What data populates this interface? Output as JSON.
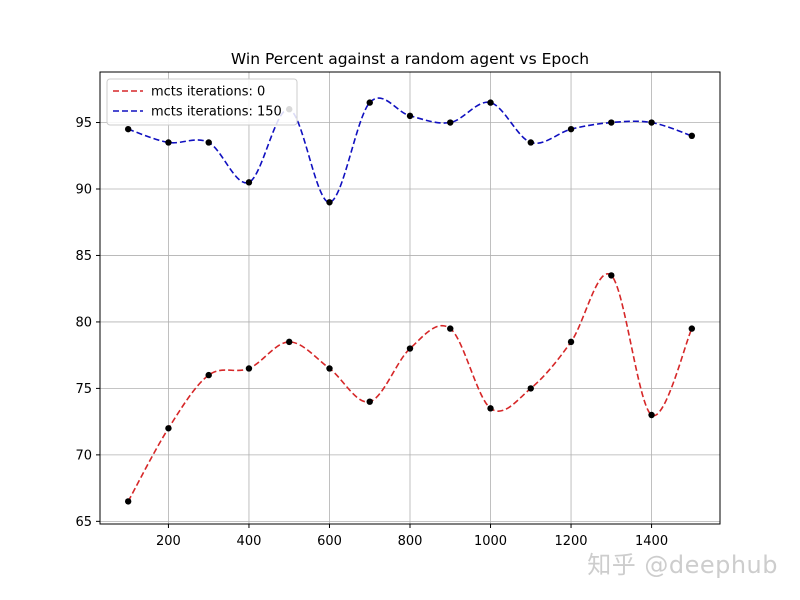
{
  "watermark": "知乎 @deephub",
  "chart_data": {
    "type": "line",
    "title": "Win Percent against a random agent vs Epoch",
    "xlabel": "",
    "ylabel": "",
    "xlim": [
      30,
      1570
    ],
    "ylim": [
      64.8,
      98.8
    ],
    "xticks": [
      200,
      400,
      600,
      800,
      1000,
      1200,
      1400
    ],
    "yticks": [
      65,
      70,
      75,
      80,
      85,
      90,
      95
    ],
    "grid": true,
    "legend_position": "top-left",
    "x": [
      100,
      200,
      300,
      400,
      500,
      600,
      700,
      800,
      900,
      1000,
      1100,
      1200,
      1300,
      1400,
      1500
    ],
    "series": [
      {
        "name": "mcts iterations: 0",
        "color": "#d62728",
        "line_style": "dashed",
        "values": [
          66.5,
          72.0,
          76.0,
          76.5,
          78.5,
          76.5,
          74.0,
          78.0,
          79.5,
          73.5,
          75.0,
          78.5,
          83.5,
          73.0,
          79.5
        ]
      },
      {
        "name": "mcts iterations: 150",
        "color": "#1010c0",
        "line_style": "dashed",
        "values": [
          94.5,
          93.5,
          93.5,
          90.5,
          96.0,
          89.0,
          96.5,
          95.5,
          95.0,
          96.5,
          93.5,
          94.5,
          95.0,
          95.0,
          94.0
        ]
      }
    ],
    "marker_color": "#000000"
  }
}
